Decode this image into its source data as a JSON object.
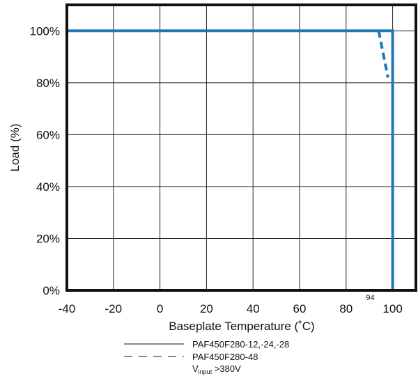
{
  "chart_data": {
    "type": "line",
    "title": "",
    "xlabel": "Baseplate Temperature (˚C)",
    "ylabel": "Load (%)",
    "xlim": [
      -40,
      110
    ],
    "ylim": [
      0,
      110
    ],
    "x_ticks": [
      -40,
      -20,
      0,
      20,
      40,
      60,
      80,
      100
    ],
    "x_tick_labels": [
      "-40",
      "-20",
      "0",
      "20",
      "40",
      "60",
      "80",
      "100"
    ],
    "y_ticks": [
      0,
      20,
      40,
      60,
      80,
      100
    ],
    "y_tick_labels": [
      "0%",
      "20%",
      "40%",
      "60%",
      "80%",
      "100%"
    ],
    "grid": true,
    "annotations": [
      {
        "text": "94",
        "x": 94
      }
    ],
    "series": [
      {
        "name": "PAF450F280-12,-24,-28",
        "style": "solid",
        "color": "#1f78b8",
        "points": [
          [
            -40,
            100
          ],
          [
            100,
            100
          ],
          [
            100,
            0
          ]
        ]
      },
      {
        "name": "PAF450F280-48",
        "style": "dashed",
        "color": "#1f78b8",
        "points": [
          [
            94,
            100
          ],
          [
            98,
            82
          ]
        ]
      }
    ],
    "legend": {
      "placement": "bottom",
      "entries": [
        {
          "label": "PAF450F280-12,-24,-28",
          "style": "solid"
        },
        {
          "label": "PAF450F280-48",
          "style": "dashed"
        }
      ],
      "note_main": "V",
      "note_sub": "input",
      "note_rest": " >380V"
    }
  }
}
